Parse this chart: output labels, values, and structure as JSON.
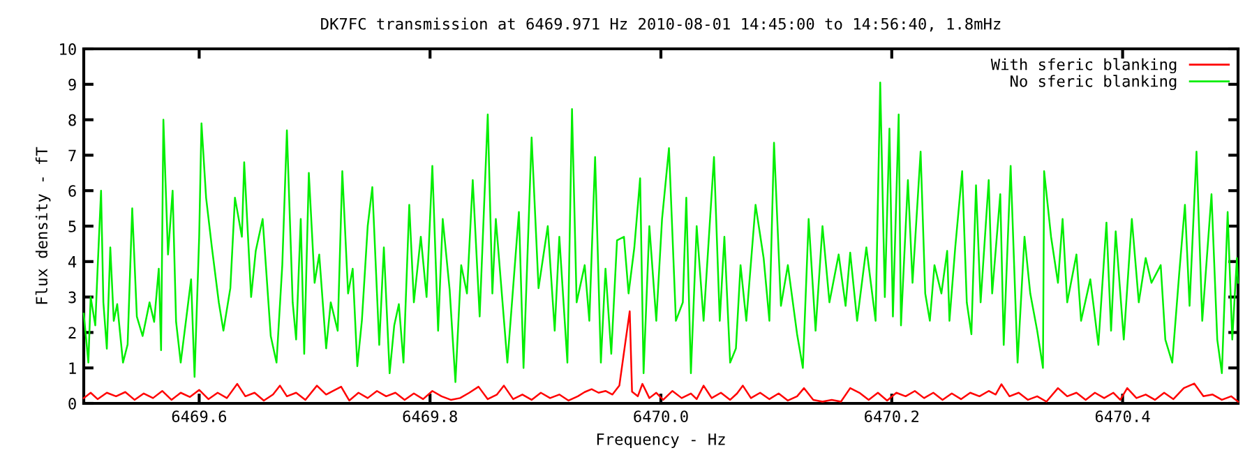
{
  "chart_data": {
    "type": "line",
    "title": "DK7FC transmission at 6469.971 Hz 2010-08-01 14:45:00 to 14:56:40, 1.8mHz",
    "xlabel": "Frequency - Hz",
    "ylabel": "Flux density - fT",
    "xlim": [
      6469.5,
      6470.5
    ],
    "ylim": [
      0,
      10
    ],
    "xticks": [
      6469.6,
      6469.8,
      {
        "value": 6470,
        "label": "6470.0"
      },
      6470.2,
      6470.4
    ],
    "yticks": [
      0,
      1,
      2,
      3,
      4,
      5,
      6,
      7,
      8,
      9,
      10
    ],
    "grid": false,
    "legend": "top right",
    "marker": "none",
    "line_style": "solid",
    "series": [
      {
        "name": "With sferic blanking",
        "color": "#ff0000",
        "x": [
          6469.5,
          6469.506,
          6469.512,
          6469.52,
          6469.528,
          6469.536,
          6469.544,
          6469.552,
          6469.56,
          6469.568,
          6469.576,
          6469.584,
          6469.592,
          6469.6,
          6469.608,
          6469.616,
          6469.624,
          6469.633,
          6469.64,
          6469.648,
          6469.656,
          6469.664,
          6469.67,
          6469.676,
          6469.684,
          6469.692,
          6469.702,
          6469.71,
          6469.716,
          6469.723,
          6469.73,
          6469.738,
          6469.746,
          6469.754,
          6469.762,
          6469.77,
          6469.778,
          6469.786,
          6469.794,
          6469.802,
          6469.81,
          6469.818,
          6469.826,
          6469.834,
          6469.842,
          6469.85,
          6469.858,
          6469.864,
          6469.872,
          6469.88,
          6469.888,
          6469.896,
          6469.904,
          6469.912,
          6469.92,
          6469.928,
          6469.934,
          6469.94,
          6469.946,
          6469.952,
          6469.958,
          6469.964,
          6469.969,
          6469.973,
          6469.975,
          6469.98,
          6469.984,
          6469.99,
          6469.996,
          6470.002,
          6470.01,
          6470.018,
          6470.026,
          6470.031,
          6470.037,
          6470.044,
          6470.052,
          6470.06,
          6470.066,
          6470.071,
          6470.078,
          6470.086,
          6470.094,
          6470.102,
          6470.11,
          6470.118,
          6470.124,
          6470.132,
          6470.14,
          6470.148,
          6470.156,
          6470.164,
          6470.172,
          6470.18,
          6470.188,
          6470.196,
          6470.204,
          6470.212,
          6470.22,
          6470.228,
          6470.236,
          6470.244,
          6470.252,
          6470.26,
          6470.268,
          6470.276,
          6470.284,
          6470.29,
          6470.295,
          6470.302,
          6470.31,
          6470.318,
          6470.326,
          6470.334,
          6470.344,
          6470.352,
          6470.36,
          6470.368,
          6470.376,
          6470.384,
          6470.392,
          6470.398,
          6470.404,
          6470.412,
          6470.42,
          6470.428,
          6470.436,
          6470.444,
          6470.453,
          6470.462,
          6470.47,
          6470.478,
          6470.486,
          6470.494,
          6470.5
        ],
        "values": [
          0.15,
          0.3,
          0.12,
          0.3,
          0.2,
          0.32,
          0.1,
          0.28,
          0.15,
          0.35,
          0.1,
          0.3,
          0.18,
          0.38,
          0.12,
          0.3,
          0.15,
          0.55,
          0.2,
          0.3,
          0.08,
          0.25,
          0.5,
          0.2,
          0.3,
          0.1,
          0.5,
          0.25,
          0.35,
          0.47,
          0.08,
          0.3,
          0.15,
          0.35,
          0.2,
          0.3,
          0.1,
          0.28,
          0.12,
          0.35,
          0.2,
          0.1,
          0.15,
          0.3,
          0.47,
          0.12,
          0.25,
          0.5,
          0.12,
          0.25,
          0.1,
          0.3,
          0.15,
          0.25,
          0.08,
          0.2,
          0.32,
          0.4,
          0.3,
          0.35,
          0.25,
          0.5,
          1.67,
          2.6,
          0.33,
          0.2,
          0.55,
          0.15,
          0.3,
          0.1,
          0.35,
          0.15,
          0.28,
          0.12,
          0.5,
          0.15,
          0.3,
          0.1,
          0.28,
          0.5,
          0.15,
          0.3,
          0.12,
          0.28,
          0.08,
          0.2,
          0.43,
          0.1,
          0.05,
          0.1,
          0.05,
          0.43,
          0.3,
          0.1,
          0.3,
          0.08,
          0.3,
          0.2,
          0.35,
          0.15,
          0.3,
          0.1,
          0.28,
          0.12,
          0.3,
          0.2,
          0.35,
          0.25,
          0.54,
          0.2,
          0.3,
          0.1,
          0.2,
          0.05,
          0.43,
          0.2,
          0.3,
          0.1,
          0.3,
          0.15,
          0.3,
          0.1,
          0.43,
          0.15,
          0.25,
          0.1,
          0.3,
          0.12,
          0.43,
          0.56,
          0.2,
          0.25,
          0.1,
          0.2,
          0.05
        ]
      },
      {
        "name": "No sferic blanking",
        "color": "#00ee00",
        "x": [
          6469.5,
          6469.504,
          6469.506,
          6469.51,
          6469.512,
          6469.515,
          6469.517,
          6469.52,
          6469.523,
          6469.526,
          6469.529,
          6469.534,
          6469.538,
          6469.542,
          6469.546,
          6469.551,
          6469.557,
          6469.561,
          6469.565,
          6469.567,
          6469.569,
          6469.573,
          6469.577,
          6469.58,
          6469.584,
          6469.589,
          6469.593,
          6469.596,
          6469.6,
          6469.602,
          6469.606,
          6469.611,
          6469.617,
          6469.621,
          6469.627,
          6469.631,
          6469.637,
          6469.639,
          6469.645,
          6469.649,
          6469.655,
          6469.662,
          6469.667,
          6469.672,
          6469.676,
          6469.681,
          6469.684,
          6469.688,
          6469.691,
          6469.695,
          6469.7,
          6469.704,
          6469.71,
          6469.714,
          6469.72,
          6469.724,
          6469.729,
          6469.733,
          6469.737,
          6469.741,
          6469.746,
          6469.75,
          6469.756,
          6469.76,
          6469.765,
          6469.769,
          6469.773,
          6469.777,
          6469.782,
          6469.786,
          6469.792,
          6469.797,
          6469.802,
          6469.807,
          6469.811,
          6469.817,
          6469.822,
          6469.827,
          6469.832,
          6469.837,
          6469.843,
          6469.85,
          6469.854,
          6469.857,
          6469.867,
          6469.877,
          6469.881,
          6469.888,
          6469.894,
          6469.902,
          6469.908,
          6469.912,
          6469.919,
          6469.923,
          6469.927,
          6469.934,
          6469.938,
          6469.943,
          6469.948,
          6469.952,
          6469.957,
          6469.962,
          6469.968,
          6469.972,
          6469.977,
          6469.982,
          6469.985,
          6469.99,
          6469.996,
          6470.001,
          6470.007,
          6470.013,
          6470.019,
          6470.022,
          6470.026,
          6470.031,
          6470.037,
          6470.046,
          6470.051,
          6470.055,
          6470.06,
          6470.065,
          6470.069,
          6470.074,
          6470.082,
          6470.089,
          6470.094,
          6470.098,
          6470.104,
          6470.11,
          6470.118,
          6470.123,
          6470.128,
          6470.134,
          6470.14,
          6470.146,
          6470.154,
          6470.16,
          6470.164,
          6470.17,
          6470.178,
          6470.186,
          6470.19,
          6470.194,
          6470.198,
          6470.201,
          6470.206,
          6470.208,
          6470.214,
          6470.218,
          6470.225,
          6470.229,
          6470.233,
          6470.237,
          6470.243,
          6470.248,
          6470.25,
          6470.255,
          6470.261,
          6470.265,
          6470.269,
          6470.273,
          6470.277,
          6470.284,
          6470.287,
          6470.294,
          6470.297,
          6470.303,
          6470.309,
          6470.315,
          6470.32,
          6470.326,
          6470.331,
          6470.332,
          6470.338,
          6470.344,
          6470.348,
          6470.352,
          6470.36,
          6470.364,
          6470.372,
          6470.379,
          6470.386,
          6470.39,
          6470.394,
          6470.401,
          6470.408,
          6470.414,
          6470.42,
          6470.425,
          6470.433,
          6470.437,
          6470.443,
          6470.449,
          6470.454,
          6470.458,
          6470.464,
          6470.469,
          6470.477,
          6470.482,
          6470.486,
          6470.491,
          6470.495,
          6470.499,
          6470.5
        ],
        "values": [
          2.53,
          1.15,
          3.0,
          2.2,
          3.8,
          6.0,
          2.85,
          1.54,
          4.4,
          2.33,
          2.8,
          1.15,
          1.66,
          5.5,
          2.45,
          1.9,
          2.85,
          2.3,
          3.8,
          1.5,
          8.0,
          4.2,
          6.0,
          2.3,
          1.15,
          2.45,
          3.5,
          0.75,
          4.7,
          7.9,
          5.8,
          4.4,
          2.85,
          2.05,
          3.25,
          5.8,
          4.7,
          6.8,
          3.0,
          4.3,
          5.2,
          1.9,
          1.15,
          3.9,
          7.7,
          2.85,
          1.8,
          5.2,
          1.4,
          6.5,
          3.4,
          4.2,
          1.55,
          2.85,
          2.05,
          6.55,
          3.1,
          3.8,
          1.05,
          2.35,
          5.0,
          6.1,
          1.65,
          4.4,
          0.85,
          2.2,
          2.8,
          1.15,
          5.6,
          2.85,
          4.7,
          3.0,
          6.7,
          2.05,
          5.2,
          3.2,
          0.6,
          3.9,
          3.1,
          6.3,
          2.45,
          8.15,
          3.1,
          5.2,
          1.15,
          5.4,
          1.0,
          7.5,
          3.25,
          5.0,
          2.05,
          4.7,
          1.15,
          8.3,
          2.85,
          3.9,
          2.33,
          6.95,
          1.15,
          3.8,
          1.4,
          4.6,
          4.7,
          3.1,
          4.4,
          6.35,
          0.85,
          5.0,
          2.33,
          5.2,
          7.2,
          2.33,
          2.85,
          5.8,
          0.85,
          5.0,
          2.33,
          6.95,
          2.33,
          4.7,
          1.15,
          1.55,
          3.9,
          2.33,
          5.6,
          4.1,
          2.33,
          7.35,
          2.75,
          3.9,
          1.95,
          1.0,
          5.2,
          2.05,
          5.0,
          2.85,
          4.2,
          2.75,
          4.25,
          2.33,
          4.4,
          2.33,
          9.05,
          3.0,
          7.75,
          2.45,
          8.15,
          2.2,
          6.3,
          3.4,
          7.1,
          3.1,
          2.33,
          3.9,
          3.1,
          4.3,
          2.33,
          4.4,
          6.55,
          2.85,
          1.95,
          6.15,
          2.85,
          6.3,
          3.1,
          5.9,
          1.65,
          6.7,
          1.15,
          4.7,
          3.1,
          2.05,
          1.0,
          6.55,
          4.7,
          3.4,
          5.2,
          2.85,
          4.2,
          2.33,
          3.5,
          1.65,
          5.1,
          2.05,
          4.85,
          1.8,
          5.2,
          2.85,
          4.1,
          3.4,
          3.9,
          1.8,
          1.15,
          3.65,
          5.6,
          2.75,
          7.1,
          2.33,
          5.9,
          1.8,
          0.85,
          5.4,
          1.8,
          4.1,
          3.4
        ]
      }
    ]
  }
}
